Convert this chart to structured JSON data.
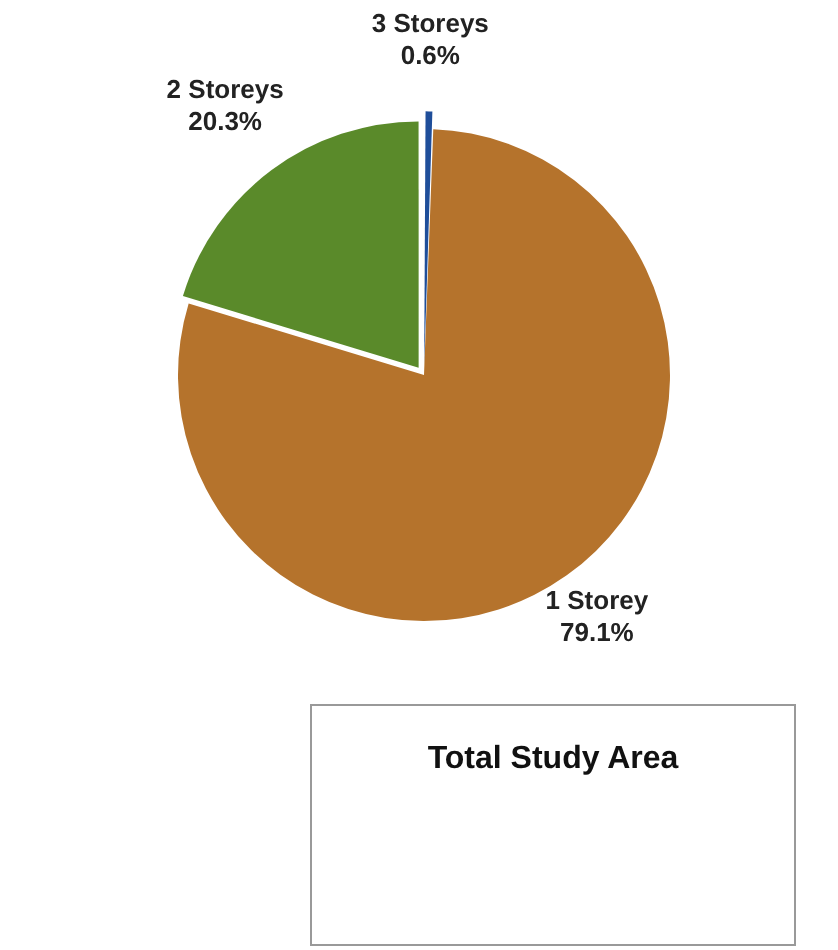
{
  "chart_data": {
    "type": "pie",
    "title": "Total Study Area",
    "categories": [
      "3 Storeys",
      "1 Storey",
      "2 Storeys"
    ],
    "values": [
      0.6,
      79.1,
      20.3
    ],
    "value_labels": [
      "0.6%",
      "79.1%",
      "20.3%"
    ],
    "colors": [
      "#1f4e9a",
      "#b5732c",
      "#5a8a2a"
    ],
    "legend": false
  }
}
